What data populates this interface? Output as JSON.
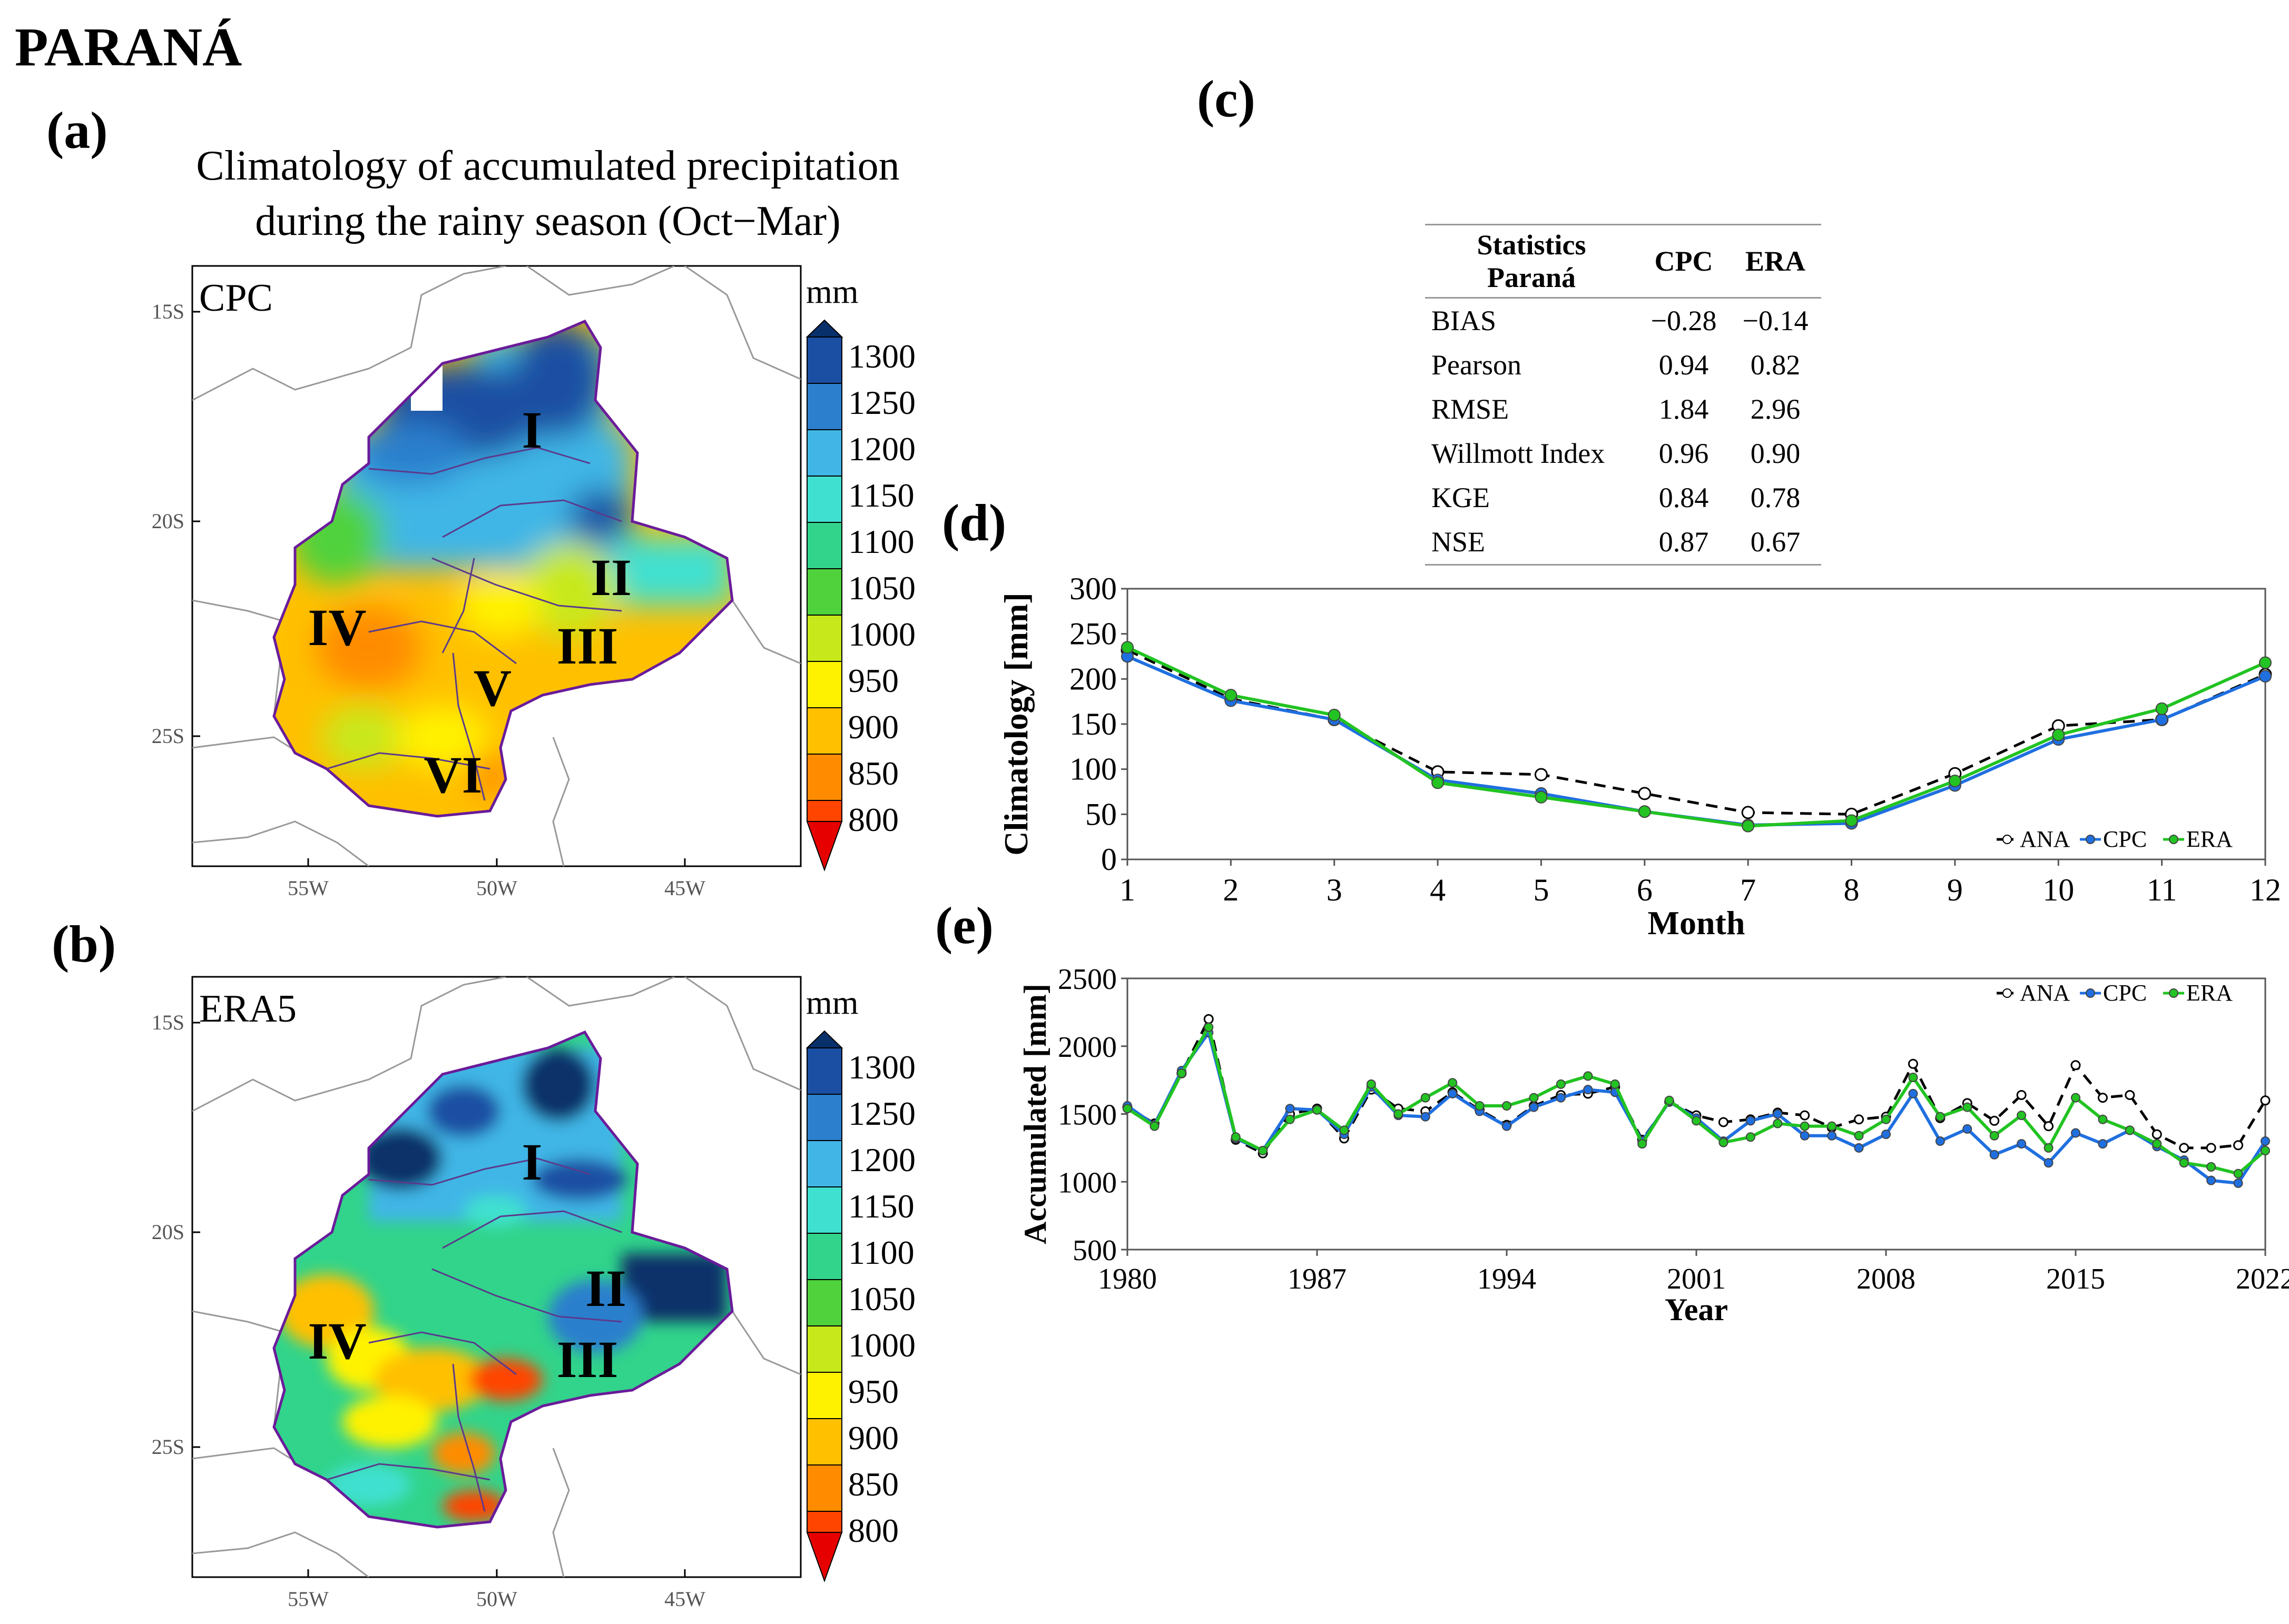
{
  "figure": {
    "region_title": "PARANÁ",
    "panel_labels": {
      "a": "(a)",
      "b": "(b)",
      "c": "(c)",
      "d": "(d)",
      "e": "(e)"
    },
    "map_title_line1": "Climatology of accumulated precipitation",
    "map_title_line2": "during the rainy season (Oct−Mar)"
  },
  "maps": {
    "a_label": "CPC",
    "b_label": "ERA5",
    "units": "mm",
    "colorbar_ticks": [
      "1300",
      "1250",
      "1200",
      "1150",
      "1100",
      "1050",
      "1000",
      "950",
      "900",
      "850",
      "800"
    ],
    "colorbar_colors": [
      "#08306b",
      "#1a4fa3",
      "#2c7fcd",
      "#41b6e6",
      "#40e0d0",
      "#31d48a",
      "#4fd23c",
      "#c7e91c",
      "#fff200",
      "#ffc000",
      "#ff8c00",
      "#ff4500",
      "#e60000"
    ],
    "lat_labels": [
      "15S",
      "20S",
      "25S"
    ],
    "lon_labels": [
      "55W",
      "50W",
      "45W"
    ],
    "regions": [
      "I",
      "II",
      "III",
      "IV",
      "V",
      "VI"
    ],
    "regions_b": [
      "I",
      "II",
      "III",
      "IV"
    ]
  },
  "stats_table": {
    "header_line1": "Statistics",
    "header_line2": "Paraná",
    "col1": "CPC",
    "col2": "ERA",
    "rows": [
      {
        "name": "BIAS",
        "cpc": "−0.28",
        "era": "−0.14"
      },
      {
        "name": "Pearson",
        "cpc": "0.94",
        "era": "0.82"
      },
      {
        "name": "RMSE",
        "cpc": "1.84",
        "era": "2.96"
      },
      {
        "name": "Willmott Index",
        "cpc": "0.96",
        "era": "0.90"
      },
      {
        "name": "KGE",
        "cpc": "0.84",
        "era": "0.78"
      },
      {
        "name": "NSE",
        "cpc": "0.87",
        "era": "0.67"
      }
    ]
  },
  "colors": {
    "ANA": "#000000",
    "CPC": "#1f6fe0",
    "ERA": "#22c322"
  },
  "chart_data": [
    {
      "id": "d",
      "type": "line",
      "xlabel": "Month",
      "ylabel": "Climatology [mm]",
      "x": [
        1,
        2,
        3,
        4,
        5,
        6,
        7,
        8,
        9,
        10,
        11,
        12
      ],
      "xlim": [
        1,
        12
      ],
      "ylim": [
        0,
        300
      ],
      "yticks": [
        0,
        50,
        100,
        150,
        200,
        250,
        300
      ],
      "legend": "bottom-right",
      "series": [
        {
          "name": "ANA",
          "style": "dashed",
          "values": [
            232,
            178,
            155,
            97,
            94,
            73,
            52,
            50,
            95,
            148,
            155,
            205
          ]
        },
        {
          "name": "CPC",
          "style": "solid",
          "values": [
            225,
            176,
            155,
            88,
            73,
            53,
            38,
            40,
            82,
            133,
            155,
            203
          ]
        },
        {
          "name": "ERA",
          "style": "solid",
          "values": [
            235,
            182,
            160,
            85,
            69,
            53,
            37,
            43,
            87,
            138,
            167,
            218
          ]
        }
      ]
    },
    {
      "id": "e",
      "type": "line",
      "xlabel": "Year",
      "ylabel": "Accumulated [mm]",
      "x": [
        1980,
        1981,
        1982,
        1983,
        1984,
        1985,
        1986,
        1987,
        1988,
        1989,
        1990,
        1991,
        1992,
        1993,
        1994,
        1995,
        1996,
        1997,
        1998,
        1999,
        2000,
        2001,
        2002,
        2003,
        2004,
        2005,
        2006,
        2007,
        2008,
        2009,
        2010,
        2011,
        2012,
        2013,
        2014,
        2015,
        2016,
        2017,
        2018,
        2019,
        2020,
        2021,
        2022
      ],
      "xticks": [
        1980,
        1987,
        1994,
        2001,
        2008,
        2015,
        2022
      ],
      "xlim": [
        1980,
        2022
      ],
      "ylim": [
        500,
        2500
      ],
      "yticks": [
        500,
        1000,
        1500,
        2000,
        2500
      ],
      "legend": "top-right",
      "series": [
        {
          "name": "ANA",
          "style": "dashed",
          "values": [
            1550,
            1430,
            1800,
            2200,
            1310,
            1210,
            1500,
            1540,
            1320,
            1680,
            1540,
            1520,
            1660,
            1530,
            1420,
            1560,
            1640,
            1650,
            1700,
            1310,
            1590,
            1490,
            1440,
            1460,
            1510,
            1490,
            1400,
            1460,
            1480,
            1870,
            1470,
            1580,
            1450,
            1640,
            1410,
            1860,
            1620,
            1640,
            1350,
            1250,
            1250,
            1270,
            1600
          ]
        },
        {
          "name": "CPC",
          "style": "solid",
          "values": [
            1560,
            1420,
            1820,
            2100,
            1320,
            1230,
            1540,
            1530,
            1350,
            1700,
            1490,
            1480,
            1650,
            1520,
            1410,
            1550,
            1620,
            1680,
            1660,
            1300,
            1590,
            1470,
            1300,
            1450,
            1500,
            1340,
            1340,
            1250,
            1350,
            1650,
            1300,
            1390,
            1200,
            1280,
            1140,
            1360,
            1280,
            1380,
            1260,
            1160,
            1010,
            990,
            1300
          ]
        },
        {
          "name": "ERA",
          "style": "solid",
          "values": [
            1540,
            1410,
            1800,
            2140,
            1330,
            1230,
            1460,
            1530,
            1380,
            1720,
            1500,
            1620,
            1730,
            1560,
            1560,
            1620,
            1720,
            1780,
            1720,
            1280,
            1600,
            1450,
            1290,
            1330,
            1430,
            1410,
            1410,
            1340,
            1460,
            1770,
            1480,
            1550,
            1340,
            1490,
            1250,
            1620,
            1460,
            1380,
            1280,
            1140,
            1110,
            1060,
            1230
          ]
        }
      ]
    }
  ]
}
